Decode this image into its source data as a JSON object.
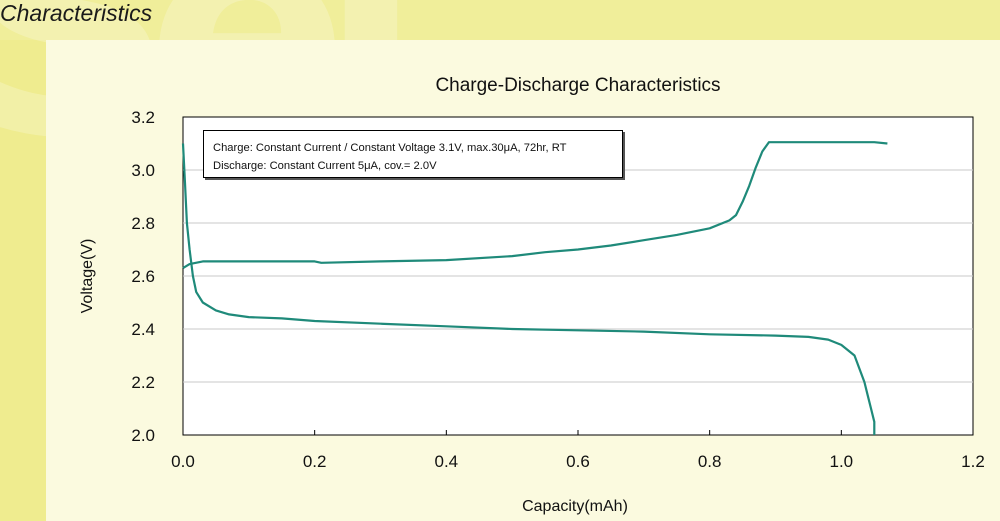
{
  "section_title": "Characteristics",
  "colors": {
    "background": "#f0ee9a",
    "panel": "#fbfadf",
    "line": "#1f8a7a",
    "grid": "#c8c8c8"
  },
  "chart_data": {
    "type": "line",
    "title": "Charge-Discharge Characteristics",
    "xlabel": "Capacity(mAh)",
    "ylabel": "Voltage(V)",
    "xlim": [
      0.0,
      1.2
    ],
    "ylim": [
      2.0,
      3.2
    ],
    "xticks": [
      "0.0",
      "0.2",
      "0.4",
      "0.6",
      "0.8",
      "1.0",
      "1.2"
    ],
    "yticks": [
      "2.0",
      "2.2",
      "2.4",
      "2.6",
      "2.8",
      "3.0",
      "3.2"
    ],
    "grid": true,
    "annotation": [
      "Charge: Constant Current / Constant Voltage 3.1V, max.30μA, 72hr, RT",
      "Discharge: Constant Current 5μA, cov.= 2.0V"
    ],
    "series": [
      {
        "x": [
          0.0,
          0.01,
          0.03,
          0.08,
          0.15,
          0.2,
          0.21,
          0.3,
          0.4,
          0.5,
          0.55,
          0.6,
          0.65,
          0.7,
          0.75,
          0.8,
          0.83,
          0.84,
          0.85,
          0.86,
          0.87,
          0.88,
          0.89,
          0.9,
          0.95,
          1.0,
          1.05,
          1.07
        ],
        "y": [
          2.63,
          2.645,
          2.655,
          2.655,
          2.655,
          2.655,
          2.65,
          2.655,
          2.66,
          2.675,
          2.69,
          2.7,
          2.715,
          2.735,
          2.755,
          2.78,
          2.81,
          2.83,
          2.88,
          2.94,
          3.01,
          3.07,
          3.105,
          3.105,
          3.105,
          3.105,
          3.105,
          3.1
        ]
      },
      {
        "x": [
          0.0,
          0.003,
          0.006,
          0.01,
          0.015,
          0.02,
          0.03,
          0.05,
          0.07,
          0.1,
          0.15,
          0.2,
          0.3,
          0.4,
          0.5,
          0.6,
          0.7,
          0.8,
          0.9,
          0.95,
          0.98,
          1.0,
          1.02,
          1.035,
          1.04,
          1.045,
          1.05,
          1.05
        ],
        "y": [
          3.1,
          2.95,
          2.8,
          2.7,
          2.6,
          2.54,
          2.5,
          2.47,
          2.455,
          2.445,
          2.44,
          2.43,
          2.42,
          2.41,
          2.4,
          2.395,
          2.39,
          2.38,
          2.375,
          2.37,
          2.36,
          2.34,
          2.3,
          2.2,
          2.15,
          2.1,
          2.05,
          2.0
        ]
      }
    ]
  }
}
